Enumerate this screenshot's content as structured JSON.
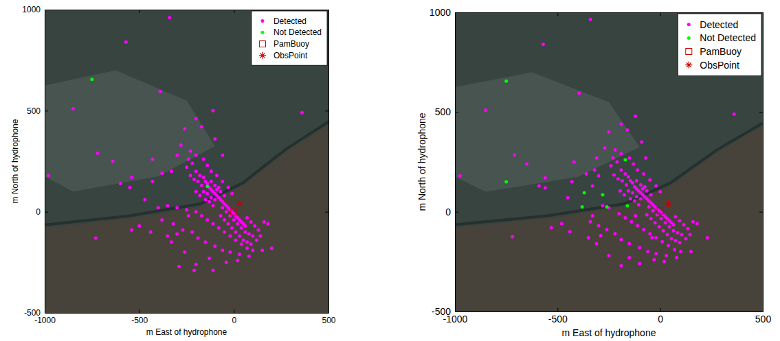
{
  "chart_data": [
    {
      "type": "scatter",
      "xlabel": "m East of hydrophone",
      "ylabel": "m North of hydrophone",
      "xlim": [
        -1000,
        500
      ],
      "ylim": [
        -500,
        1000
      ],
      "xticks": [
        -1000,
        -500,
        0,
        500
      ],
      "yticks": [
        -500,
        0,
        500,
        1000
      ],
      "legend": "upper right",
      "series": [
        {
          "name": "Detected",
          "color": "#ff00ff",
          "marker": "circle",
          "x": [
            -340,
            -570,
            -850,
            -390,
            -980,
            -720,
            -640,
            -540,
            -550,
            -600,
            -430,
            -470,
            -540,
            -730,
            -500,
            360,
            -110,
            -200,
            -260,
            -280,
            -170,
            -300,
            -230,
            -330,
            -380,
            -430,
            -100,
            -60,
            -250,
            -220,
            -200,
            -180,
            -160,
            -150,
            -140,
            -130,
            -120,
            -110,
            -170,
            -190,
            -210,
            -230,
            -100,
            -90,
            -80,
            -70,
            -60,
            -50,
            -40,
            -30,
            -20,
            -10,
            0,
            10,
            20,
            30,
            40,
            50,
            60,
            -140,
            -120,
            -100,
            -160,
            -130,
            -110,
            -150,
            -180,
            -200,
            -90,
            -70,
            -50,
            -120,
            -100,
            -80,
            -60,
            -40,
            -20,
            0,
            20,
            40,
            60,
            80,
            100,
            -70,
            -50,
            -30,
            -10,
            10,
            30,
            50,
            70,
            90,
            120,
            140,
            130,
            110,
            90,
            70,
            -400,
            -350,
            -300,
            -250,
            -200,
            -170,
            -140,
            -110,
            -80,
            -50,
            -20,
            10,
            40,
            70,
            100,
            -380,
            -320,
            -270,
            -220,
            -190,
            -150,
            -100,
            -60,
            -20,
            30,
            80,
            150,
            200,
            180,
            160,
            -330,
            -260,
            -200,
            -110,
            -40,
            20,
            -440,
            -300,
            -350,
            -160,
            -140,
            -120,
            -90,
            -200,
            -240,
            -60,
            -30,
            -10,
            -290,
            -210,
            -130,
            -240
          ],
          "values": [
            960,
            840,
            510,
            595,
            180,
            290,
            250,
            170,
            120,
            140,
            150,
            60,
            -90,
            -130,
            -70,
            490,
            500,
            460,
            410,
            330,
            420,
            280,
            300,
            200,
            190,
            260,
            360,
            280,
            220,
            240,
            200,
            180,
            170,
            150,
            140,
            120,
            110,
            100,
            130,
            150,
            160,
            180,
            90,
            80,
            70,
            60,
            50,
            40,
            30,
            20,
            10,
            0,
            -10,
            -20,
            -30,
            -40,
            -50,
            -60,
            -70,
            90,
            70,
            60,
            100,
            50,
            30,
            60,
            80,
            100,
            110,
            100,
            80,
            150,
            130,
            120,
            20,
            0,
            -20,
            -40,
            -60,
            -80,
            -100,
            -110,
            -120,
            -20,
            -40,
            -60,
            -80,
            -100,
            -120,
            -140,
            -150,
            -160,
            -140,
            -120,
            -90,
            -70,
            -50,
            -30,
            20,
            30,
            20,
            10,
            0,
            -20,
            -40,
            -60,
            -80,
            -100,
            -120,
            -140,
            -160,
            -180,
            -190,
            -40,
            -60,
            -90,
            -100,
            -130,
            -150,
            -170,
            -190,
            -200,
            -210,
            -220,
            -190,
            -180,
            -60,
            -50,
            -150,
            -200,
            -260,
            -290,
            -250,
            -240,
            -100,
            -110,
            -120,
            260,
            230,
            200,
            180,
            280,
            260,
            150,
            120,
            90,
            -270,
            -290,
            -230,
            -20
          ]
        },
        {
          "name": "Not Detected",
          "color": "#00ff00",
          "marker": "circle",
          "x": [
            -750,
            -140
          ],
          "values": [
            655,
            125
          ]
        },
        {
          "name": "PamBuoy",
          "color": "#cc0000",
          "marker": "square",
          "x": [
            0
          ],
          "values": [
            0
          ]
        },
        {
          "name": "ObsPoint",
          "color": "#cc0000",
          "marker": "star",
          "x": [
            30
          ],
          "values": [
            40
          ]
        }
      ]
    },
    {
      "type": "scatter",
      "xlabel": "m East of hydrophone",
      "ylabel": "m North of hydrophone",
      "xlim": [
        -1000,
        500
      ],
      "ylim": [
        -500,
        1000
      ],
      "xticks": [
        -1000,
        -500,
        0,
        500
      ],
      "yticks": [
        -500,
        0,
        500,
        1000
      ],
      "legend": "upper right",
      "series": [
        {
          "name": "Detected",
          "color": "#ff00ff",
          "marker": "circle",
          "x": [
            -340,
            -570,
            -850,
            -395,
            -975,
            -710,
            -650,
            -560,
            -560,
            -590,
            -430,
            -450,
            -530,
            -720,
            -480,
            360,
            -120,
            -190,
            -250,
            -270,
            -160,
            -310,
            -220,
            -320,
            -360,
            -420,
            -90,
            -70,
            -240,
            -210,
            -190,
            -170,
            -155,
            -145,
            -135,
            -125,
            -115,
            -105,
            -165,
            -185,
            -205,
            -225,
            -95,
            -85,
            -75,
            -65,
            -55,
            -45,
            -35,
            -25,
            -15,
            -5,
            5,
            15,
            25,
            35,
            45,
            55,
            65,
            -135,
            -115,
            -95,
            -155,
            -125,
            -105,
            -145,
            -175,
            -195,
            -85,
            -65,
            -45,
            -115,
            -95,
            -75,
            -55,
            -35,
            -15,
            5,
            25,
            45,
            65,
            85,
            105,
            -65,
            -45,
            -25,
            -5,
            15,
            35,
            55,
            75,
            95,
            125,
            145,
            135,
            115,
            95,
            75,
            -330,
            -300,
            -280,
            -250,
            -200,
            -170,
            -140,
            -110,
            -80,
            -50,
            -20,
            10,
            40,
            70,
            100,
            -340,
            -300,
            -260,
            -220,
            -190,
            -150,
            -100,
            -60,
            -20,
            30,
            80,
            150,
            230,
            180,
            160,
            -310,
            -250,
            -190,
            -100,
            -30,
            20,
            -440,
            -290,
            -350,
            -150,
            -130,
            -110,
            -80,
            -190,
            -230,
            -50,
            -20,
            0,
            -40,
            -150,
            -120,
            -330
          ],
          "values": [
            965,
            840,
            510,
            595,
            180,
            285,
            240,
            170,
            120,
            130,
            150,
            70,
            -80,
            -125,
            -60,
            490,
            480,
            440,
            400,
            320,
            410,
            270,
            310,
            210,
            190,
            250,
            350,
            270,
            230,
            250,
            210,
            190,
            175,
            155,
            145,
            125,
            115,
            105,
            135,
            155,
            165,
            185,
            95,
            85,
            75,
            65,
            55,
            45,
            35,
            25,
            15,
            5,
            -5,
            -15,
            -25,
            -35,
            -45,
            -55,
            -65,
            95,
            75,
            65,
            105,
            55,
            35,
            65,
            85,
            105,
            115,
            105,
            85,
            155,
            135,
            125,
            25,
            5,
            -15,
            -35,
            -55,
            -75,
            -95,
            -105,
            -115,
            -15,
            -35,
            -55,
            -75,
            -95,
            -115,
            -135,
            -145,
            -155,
            -135,
            -115,
            -85,
            -65,
            -45,
            -25,
            130,
            180,
            30,
            20,
            -10,
            -30,
            -50,
            -70,
            -90,
            -110,
            -130,
            -150,
            -170,
            -190,
            -200,
            -50,
            -70,
            -90,
            -110,
            -140,
            -160,
            -180,
            -200,
            -210,
            -220,
            -230,
            -200,
            -130,
            -60,
            -50,
            -160,
            -220,
            -270,
            -260,
            -240,
            -250,
            -100,
            -120,
            -130,
            270,
            240,
            210,
            190,
            290,
            270,
            160,
            130,
            100,
            -130,
            -230,
            -20,
            -20
          ]
        },
        {
          "name": "Not Detected",
          "color": "#00ff00",
          "marker": "circle",
          "x": [
            -750,
            -750,
            -170,
            -370,
            -380,
            -280,
            -260,
            -160
          ],
          "values": [
            655,
            150,
            260,
            95,
            25,
            85,
            25,
            30
          ]
        },
        {
          "name": "PamBuoy",
          "color": "#cc0000",
          "marker": "square",
          "x": [
            0
          ],
          "values": [
            5
          ]
        },
        {
          "name": "ObsPoint",
          "color": "#cc0000",
          "marker": "star",
          "x": [
            40
          ],
          "values": [
            40
          ]
        }
      ]
    }
  ]
}
